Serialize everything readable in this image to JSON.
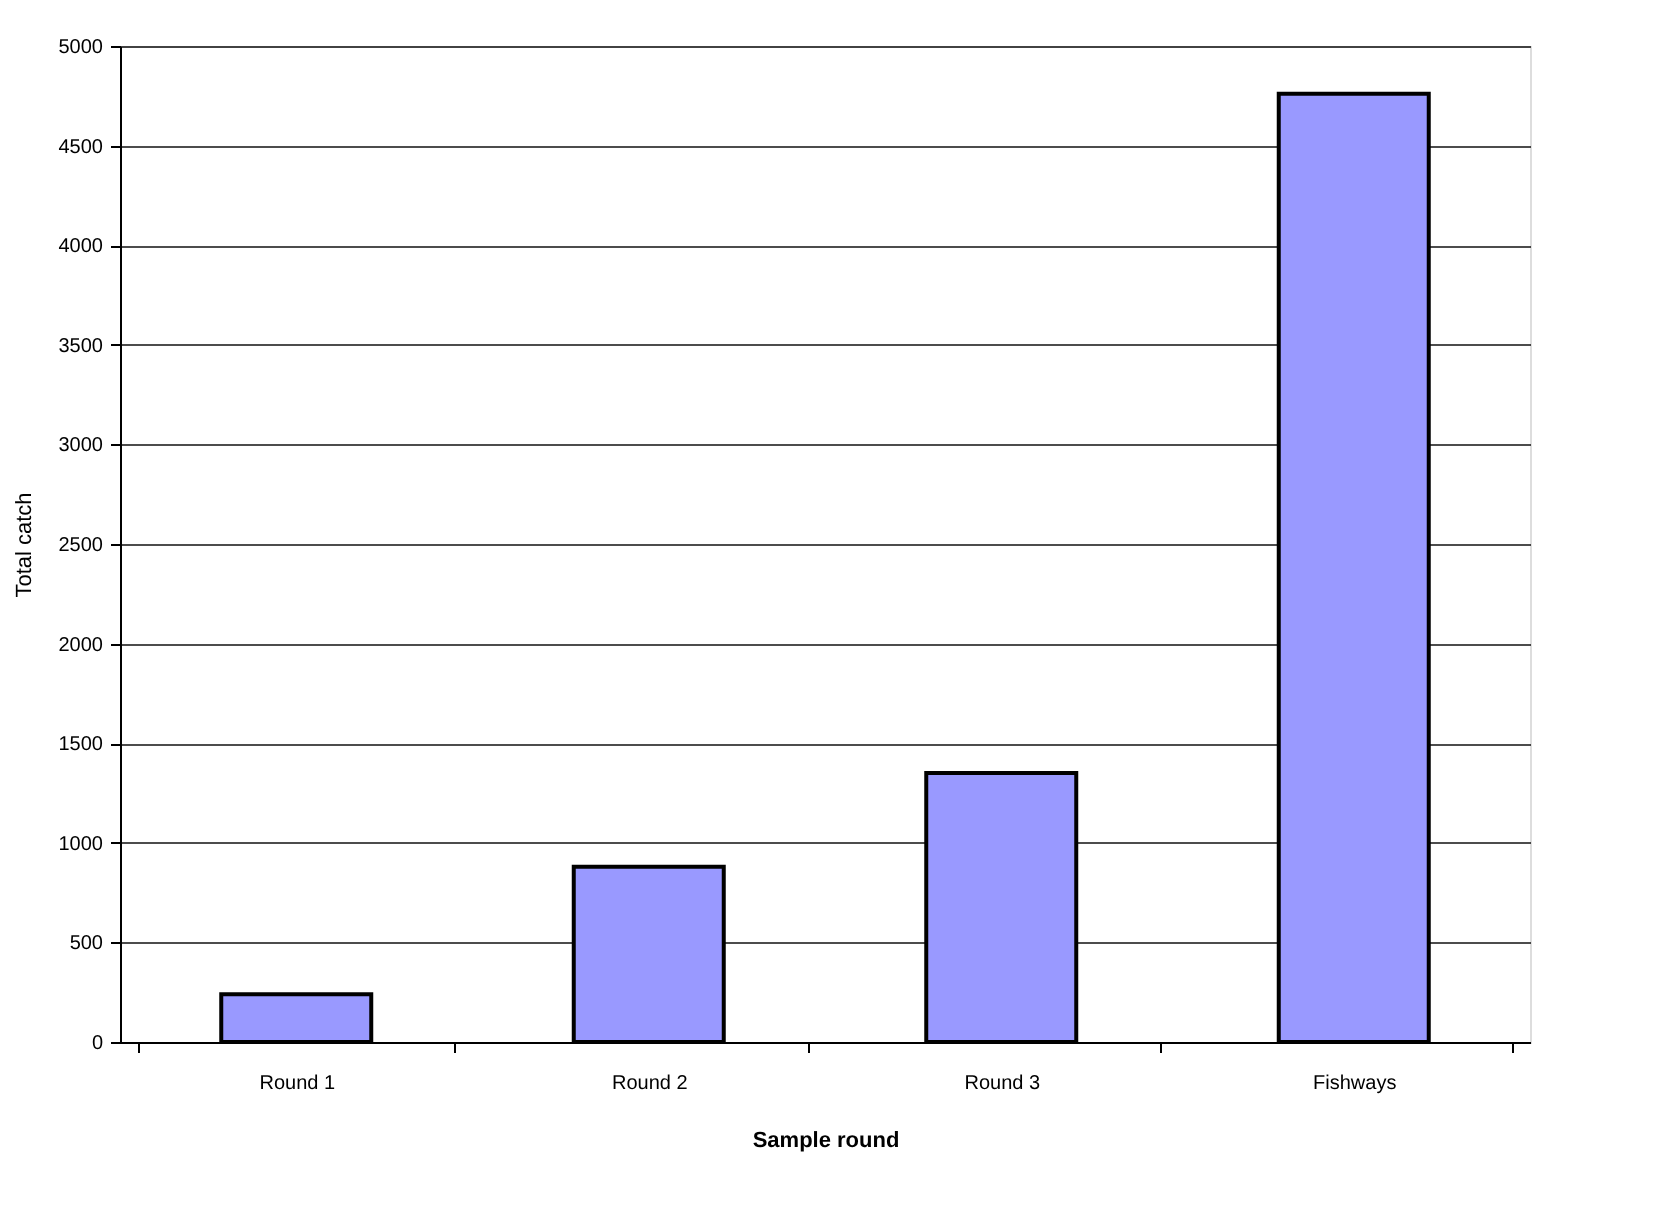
{
  "chart_data": {
    "type": "bar",
    "xlabel": "Sample round",
    "ylabel": "Total catch",
    "categories": [
      "Round 1",
      "Round 2",
      "Round 3",
      "Fishways"
    ],
    "values": [
      240,
      880,
      1350,
      4760
    ],
    "color": "#9999ff",
    "ylim": [
      0,
      5000
    ],
    "yticks": [
      0,
      500,
      1000,
      1500,
      2000,
      2500,
      3000,
      3500,
      4000,
      4500,
      5000
    ],
    "grid": "y"
  }
}
